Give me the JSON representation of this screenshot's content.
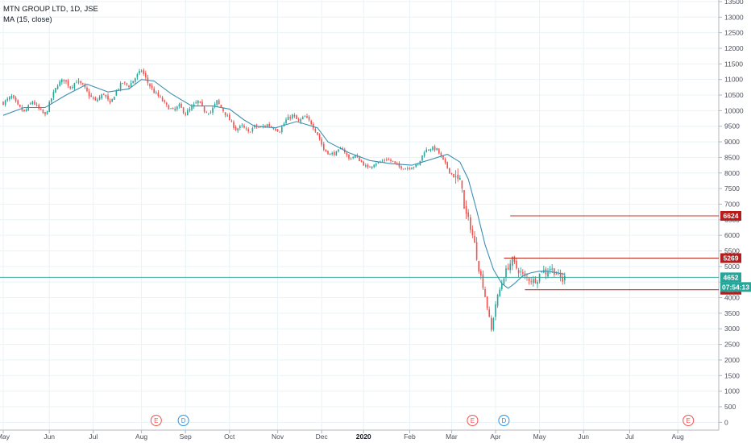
{
  "legend": {
    "symbol_line": "MTN GROUP LTD, 1D, JSE",
    "indicator_line": "MA (15, close)"
  },
  "colors": {
    "up": "#26a69a",
    "down": "#ef5350",
    "ma": "#3d8fb3",
    "hline": "#c0392b",
    "tag_red": "#b71c1c",
    "tag_green": "#26a69a",
    "price_line": "#26a69a",
    "grid": "#e8f3f6",
    "event_e": "#ef5350",
    "event_d": "#2196f3"
  },
  "chart_data": {
    "type": "candlestick",
    "title": "MTN GROUP LTD, 1D, JSE",
    "indicator": "MA (15, close)",
    "y_axis": {
      "position": "right",
      "range": [
        -250,
        13550
      ],
      "ticks": [
        0,
        500,
        1000,
        1500,
        2000,
        2500,
        3000,
        3500,
        4000,
        4500,
        5000,
        5500,
        6000,
        6500,
        7000,
        7500,
        8000,
        8500,
        9000,
        9500,
        10000,
        10500,
        11000,
        11500,
        12000,
        12500,
        13000,
        13500
      ]
    },
    "x_axis": {
      "labels": [
        {
          "label": "May",
          "index": 0,
          "bold": false
        },
        {
          "label": "Jun",
          "index": 22,
          "bold": false
        },
        {
          "label": "Jul",
          "index": 43,
          "bold": false
        },
        {
          "label": "Aug",
          "index": 66,
          "bold": false
        },
        {
          "label": "Sep",
          "index": 87,
          "bold": false
        },
        {
          "label": "Oct",
          "index": 108,
          "bold": false
        },
        {
          "label": "Nov",
          "index": 131,
          "bold": false
        },
        {
          "label": "Dec",
          "index": 152,
          "bold": false
        },
        {
          "label": "2020",
          "index": 172,
          "bold": true
        },
        {
          "label": "Feb",
          "index": 194,
          "bold": false
        },
        {
          "label": "Mar",
          "index": 214,
          "bold": false
        },
        {
          "label": "Apr",
          "index": 235,
          "bold": false
        },
        {
          "label": "May",
          "index": 256,
          "bold": false
        },
        {
          "label": "Jun",
          "index": 277,
          "bold": false
        },
        {
          "label": "Jul",
          "index": 299,
          "bold": false
        },
        {
          "label": "Aug",
          "index": 322,
          "bold": false
        }
      ],
      "last_index": 340
    },
    "close_path": [
      [
        0,
        10250
      ],
      [
        4,
        10450
      ],
      [
        7,
        10150
      ],
      [
        10,
        9950
      ],
      [
        14,
        10300
      ],
      [
        17,
        10050
      ],
      [
        20,
        9850
      ],
      [
        23,
        10400
      ],
      [
        26,
        10850
      ],
      [
        29,
        11000
      ],
      [
        32,
        10750
      ],
      [
        35,
        10950
      ],
      [
        38,
        10800
      ],
      [
        41,
        10500
      ],
      [
        44,
        10300
      ],
      [
        48,
        10550
      ],
      [
        51,
        10200
      ],
      [
        54,
        10650
      ],
      [
        57,
        10900
      ],
      [
        60,
        10800
      ],
      [
        63,
        11050
      ],
      [
        66,
        11300
      ],
      [
        69,
        10900
      ],
      [
        72,
        10600
      ],
      [
        75,
        10400
      ],
      [
        78,
        10150
      ],
      [
        81,
        10000
      ],
      [
        84,
        10150
      ],
      [
        87,
        9900
      ],
      [
        90,
        10100
      ],
      [
        93,
        10300
      ],
      [
        96,
        10000
      ],
      [
        99,
        9950
      ],
      [
        102,
        10300
      ],
      [
        105,
        10000
      ],
      [
        108,
        9700
      ],
      [
        111,
        9400
      ],
      [
        114,
        9500
      ],
      [
        117,
        9300
      ],
      [
        120,
        9500
      ],
      [
        123,
        9450
      ],
      [
        126,
        9550
      ],
      [
        129,
        9450
      ],
      [
        132,
        9350
      ],
      [
        135,
        9700
      ],
      [
        138,
        9850
      ],
      [
        141,
        9650
      ],
      [
        144,
        9800
      ],
      [
        147,
        9600
      ],
      [
        150,
        9250
      ],
      [
        153,
        8750
      ],
      [
        156,
        8600
      ],
      [
        159,
        8650
      ],
      [
        162,
        8800
      ],
      [
        165,
        8450
      ],
      [
        168,
        8550
      ],
      [
        171,
        8350
      ],
      [
        174,
        8150
      ],
      [
        177,
        8300
      ],
      [
        180,
        8350
      ],
      [
        183,
        8450
      ],
      [
        186,
        8350
      ],
      [
        189,
        8200
      ],
      [
        192,
        8150
      ],
      [
        195,
        8200
      ],
      [
        198,
        8250
      ],
      [
        201,
        8700
      ],
      [
        204,
        8800
      ],
      [
        207,
        8750
      ],
      [
        210,
        8400
      ],
      [
        213,
        8050
      ],
      [
        216,
        7800
      ],
      [
        219,
        7650
      ],
      [
        220,
        6800
      ],
      [
        223,
        6300
      ],
      [
        225,
        5700
      ],
      [
        227,
        4950
      ],
      [
        229,
        4400
      ],
      [
        231,
        3700
      ],
      [
        233,
        2950
      ],
      [
        235,
        3800
      ],
      [
        237,
        4250
      ],
      [
        239,
        4700
      ],
      [
        241,
        5000
      ],
      [
        243,
        5200
      ],
      [
        245,
        4950
      ],
      [
        247,
        4800
      ],
      [
        249,
        4650
      ],
      [
        251,
        4600
      ],
      [
        253,
        4550
      ],
      [
        255,
        4600
      ],
      [
        257,
        4900
      ],
      [
        259,
        4800
      ],
      [
        261,
        4950
      ],
      [
        263,
        4850
      ],
      [
        265,
        4700
      ],
      [
        267,
        4550
      ],
      [
        268,
        4652
      ]
    ],
    "ma_path": [
      [
        0,
        9850
      ],
      [
        10,
        10100
      ],
      [
        20,
        10100
      ],
      [
        30,
        10500
      ],
      [
        40,
        10850
      ],
      [
        50,
        10600
      ],
      [
        60,
        10700
      ],
      [
        66,
        11000
      ],
      [
        72,
        10950
      ],
      [
        80,
        10550
      ],
      [
        90,
        10150
      ],
      [
        100,
        10150
      ],
      [
        108,
        10050
      ],
      [
        115,
        9700
      ],
      [
        120,
        9500
      ],
      [
        130,
        9450
      ],
      [
        140,
        9650
      ],
      [
        150,
        9450
      ],
      [
        155,
        9000
      ],
      [
        165,
        8650
      ],
      [
        175,
        8400
      ],
      [
        185,
        8300
      ],
      [
        195,
        8250
      ],
      [
        205,
        8450
      ],
      [
        212,
        8600
      ],
      [
        218,
        8350
      ],
      [
        222,
        7800
      ],
      [
        226,
        6800
      ],
      [
        230,
        5700
      ],
      [
        234,
        4900
      ],
      [
        238,
        4450
      ],
      [
        241,
        4300
      ],
      [
        244,
        4450
      ],
      [
        248,
        4700
      ],
      [
        252,
        4800
      ],
      [
        256,
        4850
      ],
      [
        260,
        4850
      ],
      [
        264,
        4800
      ],
      [
        268,
        4750
      ]
    ],
    "horizontal_levels": [
      {
        "value": 6624,
        "from_index": 242,
        "label": "6624"
      },
      {
        "value": 5269,
        "from_index": 239,
        "label": "5269"
      },
      {
        "value": 4254,
        "from_index": 249,
        "label": "4254"
      }
    ],
    "last_price": {
      "value": 4652,
      "label": "4652",
      "countdown": "07:54:13"
    },
    "events": [
      {
        "type": "E",
        "index": 73
      },
      {
        "type": "D",
        "index": 86
      },
      {
        "type": "E",
        "index": 224
      },
      {
        "type": "D",
        "index": 239
      },
      {
        "type": "E",
        "index": 327
      }
    ]
  }
}
